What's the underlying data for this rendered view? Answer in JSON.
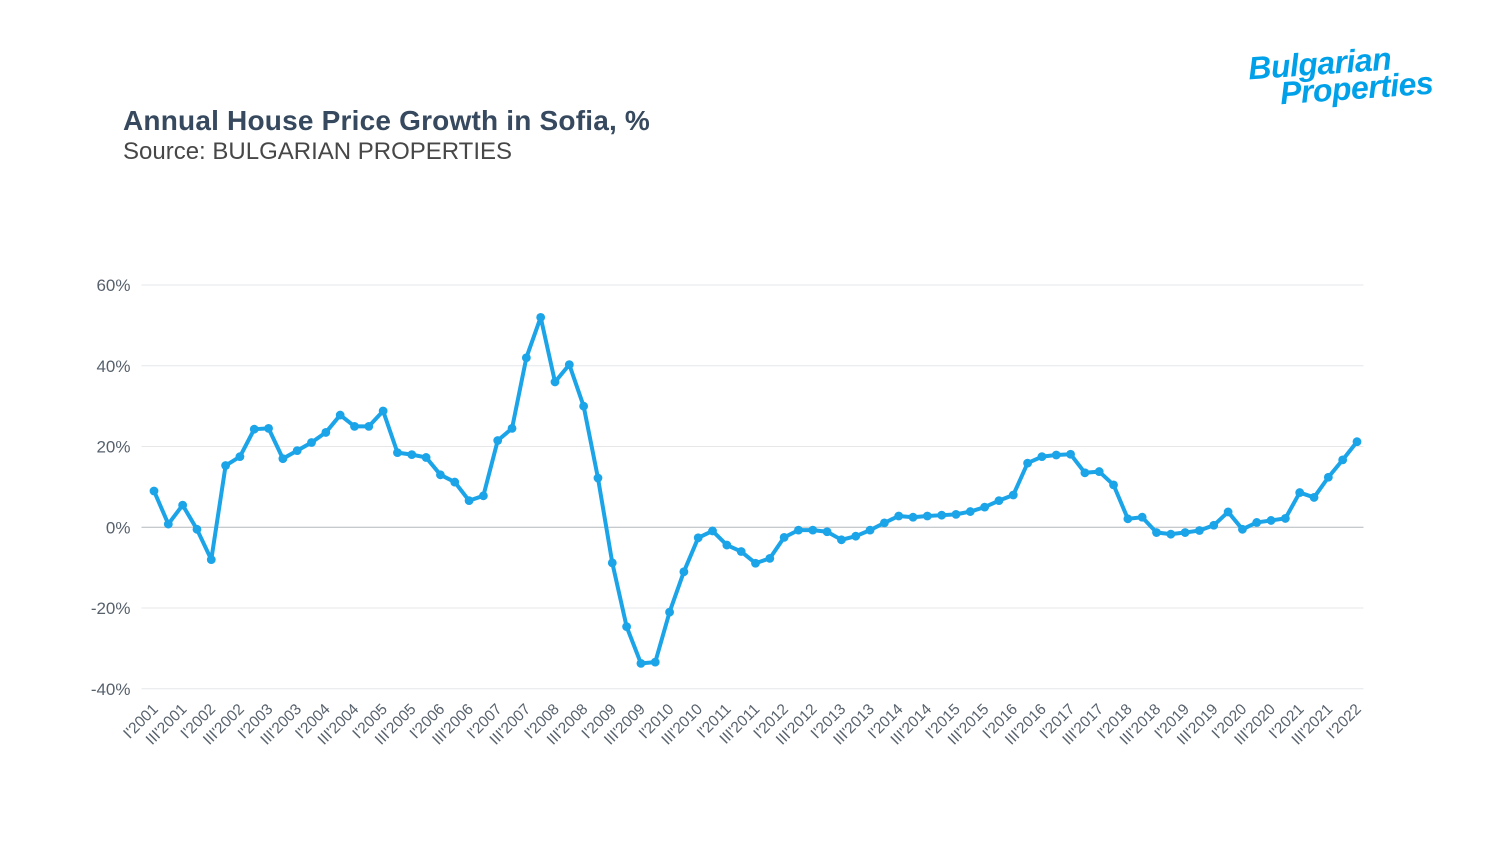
{
  "header": {
    "title": "Annual House Price Growth in Sofia, %",
    "subtitle": "Source: BULGARIAN PROPERTIES",
    "brand_line1": "Bulgarian",
    "brand_line2": "Properties"
  },
  "colors": {
    "accent_line": "#1ba4e8",
    "brand_blue": "#00a1e9",
    "title_text": "#36495e",
    "grid": "#e5e7e9",
    "zero_line": "#b4b8bc",
    "axis_text": "#57616c"
  },
  "chart_data": {
    "type": "line",
    "title": "Annual House Price Growth in Sofia, %",
    "series_name": "Annual house price growth, %",
    "xlabel": "",
    "ylabel": "",
    "ylim": [
      -40,
      60
    ],
    "grid": true,
    "legend": false,
    "y_ticks": [
      60,
      40,
      20,
      0,
      -20,
      -40
    ],
    "y_tick_labels": [
      "60%",
      "40%",
      "20%",
      "0%",
      "-20%",
      "-40%"
    ],
    "x_tick_labels": [
      "I'2001",
      "III'2001",
      "I'2002",
      "III'2002",
      "I'2003",
      "III'2003",
      "I'2004",
      "III'2004",
      "I'2005",
      "III'2005",
      "I'2006",
      "III'2006",
      "I'2007",
      "III'2007",
      "I'2008",
      "III'2008",
      "I'2009",
      "III'2009",
      "I'2010",
      "III'2010",
      "I'2011",
      "III'2011",
      "I'2012",
      "III'2012",
      "I'2013",
      "III'2013",
      "I'2014",
      "III'2014",
      "I'2015",
      "III'2015",
      "I'2016",
      "III'2016",
      "I'2017",
      "III'2017",
      "I'2018",
      "III'2018",
      "I'2019",
      "III'2019",
      "I'2020",
      "III'2020",
      "I'2021",
      "III'2021",
      "I'2022"
    ],
    "categories": [
      "I'2001",
      "II'2001",
      "III'2001",
      "IV'2001",
      "I'2002",
      "II'2002",
      "III'2002",
      "IV'2002",
      "I'2003",
      "II'2003",
      "III'2003",
      "IV'2003",
      "I'2004",
      "II'2004",
      "III'2004",
      "IV'2004",
      "I'2005",
      "II'2005",
      "III'2005",
      "IV'2005",
      "I'2006",
      "II'2006",
      "III'2006",
      "IV'2006",
      "I'2007",
      "II'2007",
      "III'2007",
      "IV'2007",
      "I'2008",
      "II'2008",
      "III'2008",
      "IV'2008",
      "I'2009",
      "II'2009",
      "III'2009",
      "IV'2009",
      "I'2010",
      "II'2010",
      "III'2010",
      "IV'2010",
      "I'2011",
      "II'2011",
      "III'2011",
      "IV'2011",
      "I'2012",
      "II'2012",
      "III'2012",
      "IV'2012",
      "I'2013",
      "II'2013",
      "III'2013",
      "IV'2013",
      "I'2014",
      "II'2014",
      "III'2014",
      "IV'2014",
      "I'2015",
      "II'2015",
      "III'2015",
      "IV'2015",
      "I'2016",
      "II'2016",
      "III'2016",
      "IV'2016",
      "I'2017",
      "II'2017",
      "III'2017",
      "IV'2017",
      "I'2018",
      "II'2018",
      "III'2018",
      "IV'2018",
      "I'2019",
      "II'2019",
      "III'2019",
      "IV'2019",
      "I'2020",
      "II'2020",
      "III'2020",
      "IV'2020",
      "I'2021",
      "II'2021",
      "III'2021",
      "IV'2021",
      "I'2022"
    ],
    "values": [
      9,
      0.8,
      5.5,
      -0.5,
      -8,
      15.3,
      17.5,
      24.3,
      24.5,
      17,
      19,
      21,
      23.5,
      27.8,
      25,
      25,
      28.8,
      18.5,
      18,
      17.3,
      13,
      11.2,
      6.6,
      7.8,
      21.5,
      24.5,
      42,
      52,
      36,
      40.3,
      30,
      12.2,
      -8.8,
      -24.6,
      -33.7,
      -33.4,
      -21,
      -11,
      -2.6,
      -0.9,
      -4.4,
      -6,
      -8.9,
      -7.7,
      -2.5,
      -0.7,
      -0.7,
      -1.1,
      -3.1,
      -2.2,
      -0.7,
      1.1,
      2.8,
      2.5,
      2.8,
      3,
      3.2,
      3.9,
      5,
      6.6,
      8,
      15.9,
      17.5,
      17.9,
      18.1,
      13.5,
      13.8,
      10.5,
      2.1,
      2.5,
      -1.3,
      -1.7,
      -1.3,
      -0.8,
      0.5,
      3.8,
      -0.5,
      1.2,
      1.7,
      2.2,
      8.6,
      7.4,
      12.4,
      16.7,
      21.2
    ]
  }
}
